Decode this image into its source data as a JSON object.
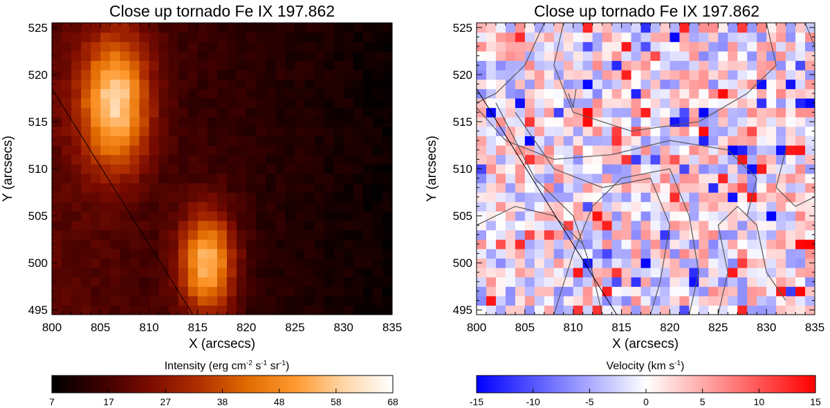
{
  "chart_data": [
    {
      "type": "heatmap",
      "title": "Close up tornado Fe IX 197.862",
      "xlabel": "X (arcsecs)",
      "ylabel": "Y (arcsecs)",
      "xlim": [
        800,
        835
      ],
      "ylim": [
        494.5,
        525.5
      ],
      "xticks": [
        "800",
        "805",
        "810",
        "815",
        "820",
        "825",
        "830",
        "835"
      ],
      "yticks": [
        "495",
        "500",
        "505",
        "510",
        "515",
        "520",
        "525"
      ],
      "grid": false,
      "colormap": "hot",
      "colorbar": {
        "label": "Intensity (erg cm⁻² s⁻¹ sr⁻¹)",
        "label_main": "Intensity (erg cm",
        "label_exp1": "-2",
        "label_mid1": " s",
        "label_exp2": "-1",
        "label_mid2": " sr",
        "label_exp3": "-1",
        "label_end": ")",
        "range": [
          7,
          68
        ],
        "ticks": [
          "7",
          "17",
          "27",
          "38",
          "48",
          "58",
          "68"
        ],
        "colors": [
          "#000000",
          "#3a0000",
          "#7a0b00",
          "#b02e00",
          "#e06a00",
          "#ff9a30",
          "#ffd6a8",
          "#ffffff"
        ]
      },
      "features": [
        {
          "name": "bright blob upper-left",
          "center": [
            806.5,
            517
          ],
          "radius": [
            3.5,
            7
          ],
          "peak": 62
        },
        {
          "name": "bright blob lower-middle",
          "center": [
            816,
            500
          ],
          "radius": [
            2.8,
            5.5
          ],
          "peak": 60
        }
      ],
      "background_level": 20,
      "limb_line": {
        "from": [
          800,
          518.5
        ],
        "to": [
          814.5,
          494.5
        ]
      }
    },
    {
      "type": "heatmap",
      "title": "Close up tornado Fe IX 197.862",
      "xlabel": "X (arcsecs)",
      "ylabel": "Y (arcsecs)",
      "xlim": [
        800,
        835
      ],
      "ylim": [
        494.5,
        525.5
      ],
      "xticks": [
        "800",
        "805",
        "810",
        "815",
        "820",
        "825",
        "830",
        "835"
      ],
      "yticks": [
        "495",
        "500",
        "505",
        "510",
        "515",
        "520",
        "525"
      ],
      "grid": false,
      "colormap": "blue-white-red",
      "colorbar": {
        "label": "Velocity (km s⁻¹)",
        "label_main": "Velocity (km s",
        "label_exp1": "-1",
        "label_end": ")",
        "range": [
          -15,
          15
        ],
        "ticks": [
          "-15",
          "-10",
          "-5",
          "0",
          "5",
          "10",
          "15"
        ],
        "colors": [
          "#0000ff",
          "#ffffff",
          "#ff0000"
        ]
      },
      "value_range": [
        -15,
        15
      ],
      "contour_color": "#555555",
      "limb_line": {
        "from": [
          800,
          518.5
        ],
        "to": [
          814.5,
          494.5
        ]
      }
    }
  ]
}
